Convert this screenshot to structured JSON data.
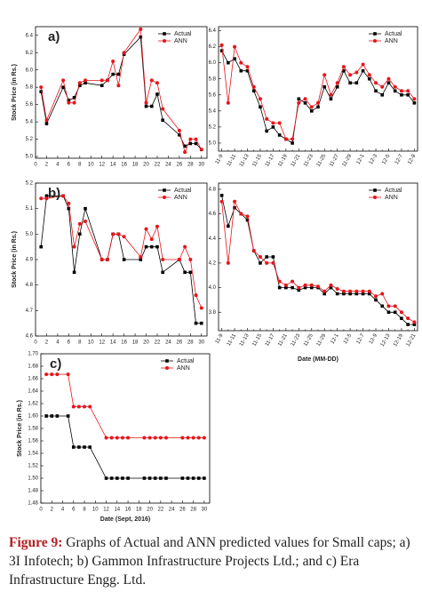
{
  "caption_label": "Figure 9:",
  "caption": "Graphs of Actual and ANN predicted values for Small caps; a) 3I Infotech; b) Gammon Infrastructure Projects Ltd.; and c) Era Infrastructure Engg. Ltd.",
  "chart_data": [
    {
      "type": "line",
      "label": "a)",
      "y_label": "Stock Price (in Rs.)",
      "x": [
        1,
        2,
        5,
        6,
        7,
        8,
        9,
        12,
        13,
        14,
        15,
        16,
        19,
        20,
        21,
        22,
        23,
        26,
        27,
        28,
        29,
        30
      ],
      "xlim": [
        0,
        31
      ],
      "xticks": [
        0,
        2,
        4,
        6,
        8,
        10,
        12,
        14,
        16,
        18,
        20,
        22,
        24,
        26,
        28,
        30
      ],
      "ylim": [
        4.98,
        6.5
      ],
      "yticks": [
        {
          "value": 5,
          "label": "5.0"
        },
        5.2,
        5.4,
        5.6,
        5.8,
        {
          "value": 6,
          "label": "6.0"
        },
        6.2,
        6.4
      ],
      "series": [
        {
          "name": "Actual",
          "color": "#000000",
          "marker": "square",
          "values": [
            5.75,
            5.38,
            5.8,
            5.65,
            5.68,
            5.82,
            5.85,
            5.82,
            5.88,
            5.95,
            5.95,
            6.18,
            6.38,
            5.58,
            5.58,
            5.72,
            5.42,
            5.25,
            5.12,
            5.15,
            5.15,
            5.08
          ]
        },
        {
          "name": "ANN",
          "color": "#e8141b",
          "marker": "circle",
          "values": [
            5.8,
            5.42,
            5.88,
            5.62,
            5.62,
            5.85,
            5.88,
            5.88,
            5.88,
            6.1,
            5.82,
            6.2,
            6.47,
            5.62,
            5.88,
            5.85,
            5.55,
            5.3,
            5.05,
            5.2,
            5.2,
            5.08
          ]
        }
      ]
    },
    {
      "type": "line",
      "categories": [
        "11-9",
        null,
        "11-11",
        null,
        "11-13",
        null,
        "11-15",
        null,
        "11-17",
        null,
        "11-19",
        null,
        "11-21",
        null,
        "11-23",
        null,
        "11-25",
        null,
        "11-27",
        null,
        "11-29",
        null,
        "12-1",
        null,
        "12-3",
        null,
        "12-5",
        null,
        "12-7",
        null,
        "12-9"
      ],
      "ylim": [
        4.9,
        6.45
      ],
      "yticks": [
        {
          "value": 5,
          "label": "5.0"
        },
        5.2,
        5.4,
        5.6,
        5.8,
        {
          "value": 6,
          "label": "6.0"
        },
        6.2,
        6.4
      ],
      "series": [
        {
          "name": "Actual",
          "color": "#000000",
          "marker": "square",
          "values": [
            6.15,
            6.0,
            6.05,
            5.9,
            5.9,
            5.65,
            5.45,
            5.15,
            5.2,
            5.1,
            5.05,
            5.0,
            5.55,
            5.5,
            5.4,
            5.45,
            5.7,
            5.55,
            5.7,
            5.9,
            5.75,
            5.75,
            5.9,
            5.8,
            5.65,
            5.6,
            5.75,
            5.65,
            5.6,
            5.6,
            5.5
          ]
        },
        {
          "name": "ANN",
          "color": "#e8141b",
          "marker": "circle",
          "values": [
            6.22,
            5.5,
            6.2,
            6.0,
            5.95,
            5.7,
            5.55,
            5.3,
            5.25,
            5.25,
            5.05,
            5.05,
            5.5,
            5.55,
            5.45,
            5.5,
            5.85,
            5.6,
            5.75,
            5.95,
            5.85,
            5.88,
            5.98,
            5.85,
            5.75,
            5.7,
            5.8,
            5.7,
            5.65,
            5.65,
            5.55
          ]
        }
      ]
    },
    {
      "type": "line",
      "label": "b)",
      "y_label": "Stock Price (in Rs.)",
      "x": [
        1,
        2,
        5,
        6,
        7,
        8,
        9,
        12,
        13,
        14,
        15,
        16,
        19,
        20,
        21,
        22,
        23,
        26,
        27,
        28,
        29,
        30
      ],
      "xlim": [
        0,
        31
      ],
      "xticks": [
        0,
        2,
        4,
        6,
        8,
        10,
        12,
        14,
        16,
        18,
        20,
        22,
        24,
        26,
        28,
        30
      ],
      "ylim": [
        4.6,
        5.2
      ],
      "yticks": [
        4.6,
        4.7,
        4.8,
        4.9,
        {
          "value": 5,
          "label": "5.0"
        },
        5.1,
        5.2
      ],
      "series": [
        {
          "name": "Actual",
          "color": "#000000",
          "marker": "square",
          "values": [
            4.95,
            5.15,
            5.15,
            5.1,
            4.85,
            5.0,
            5.1,
            4.9,
            4.9,
            5.0,
            5.0,
            4.9,
            4.9,
            4.95,
            4.95,
            4.95,
            4.85,
            4.9,
            4.85,
            4.85,
            4.65,
            4.65
          ]
        },
        {
          "name": "ANN",
          "color": "#e8141b",
          "marker": "circle",
          "values": [
            5.14,
            5.14,
            5.15,
            5.12,
            4.95,
            5.04,
            5.05,
            4.9,
            4.9,
            5.0,
            5.0,
            4.99,
            4.91,
            5.02,
            4.98,
            5.03,
            4.9,
            4.9,
            4.95,
            4.9,
            4.76,
            4.71
          ]
        }
      ]
    },
    {
      "type": "line",
      "x_label": "Date (MM-DD)",
      "categories": [
        "11-9",
        null,
        "11-11",
        null,
        "11-13",
        null,
        "11-15",
        null,
        "11-17",
        null,
        "11-21",
        null,
        "11-23",
        null,
        "11-25",
        null,
        "11-29",
        null,
        "12-1",
        null,
        "12-5",
        null,
        "12-7",
        null,
        "12-9",
        null,
        "12-13",
        null,
        "12-19",
        null,
        "12-21"
      ],
      "ylim": [
        3.65,
        4.85
      ],
      "yticks": [
        3.8,
        {
          "value": 4,
          "label": "4.0"
        },
        4.2,
        4.4,
        4.6,
        4.8
      ],
      "series": [
        {
          "name": "Actual",
          "color": "#000000",
          "marker": "square",
          "values": [
            4.75,
            4.5,
            4.65,
            4.6,
            4.55,
            4.3,
            4.2,
            4.25,
            4.25,
            4.0,
            4.0,
            4.0,
            3.98,
            4.0,
            4.0,
            4.0,
            3.95,
            4.0,
            3.95,
            3.95,
            3.95,
            3.95,
            3.95,
            3.95,
            3.9,
            3.85,
            3.8,
            3.8,
            3.75,
            3.7,
            3.7
          ]
        },
        {
          "name": "ANN",
          "color": "#e8141b",
          "marker": "circle",
          "values": [
            4.7,
            4.2,
            4.7,
            4.6,
            4.58,
            4.3,
            4.25,
            4.2,
            4.2,
            4.05,
            4.02,
            4.05,
            4.0,
            4.02,
            4.02,
            4.01,
            3.97,
            4.02,
            3.99,
            3.97,
            3.97,
            3.97,
            3.97,
            3.97,
            3.93,
            3.95,
            3.85,
            3.85,
            3.8,
            3.75,
            3.72
          ]
        }
      ]
    },
    {
      "type": "line",
      "label": "c)",
      "y_label": "Stock Price (in Rs.)",
      "x_label": "Date (Sept, 2016)",
      "x": [
        1,
        2,
        3,
        5,
        6,
        7,
        8,
        9,
        12,
        13,
        14,
        15,
        16,
        19,
        20,
        21,
        22,
        23,
        26,
        27,
        28,
        29,
        30
      ],
      "xlim": [
        0,
        31
      ],
      "xticks": [
        0,
        2,
        4,
        6,
        8,
        10,
        12,
        14,
        16,
        18,
        20,
        22,
        24,
        26,
        28,
        30
      ],
      "ylim": [
        1.46,
        1.7
      ],
      "yticks": [
        1.46,
        1.48,
        {
          "value": 1.5,
          "label": "1.50"
        },
        1.52,
        1.54,
        1.56,
        1.58,
        {
          "value": 1.6,
          "label": "1.60"
        },
        1.62,
        1.64,
        1.66,
        1.68,
        {
          "value": 1.7,
          "label": "1.70"
        }
      ],
      "series": [
        {
          "name": "Actual",
          "color": "#000000",
          "marker": "square",
          "values": [
            1.6,
            1.6,
            1.6,
            1.6,
            1.55,
            1.55,
            1.55,
            1.55,
            1.5,
            1.5,
            1.5,
            1.5,
            1.5,
            1.5,
            1.5,
            1.5,
            1.5,
            1.5,
            1.5,
            1.5,
            1.5,
            1.5,
            1.5
          ]
        },
        {
          "name": "ANN",
          "color": "#e8141b",
          "marker": "circle",
          "values": [
            1.667,
            1.667,
            1.667,
            1.667,
            1.615,
            1.615,
            1.615,
            1.615,
            1.565,
            1.565,
            1.565,
            1.565,
            1.565,
            1.565,
            1.565,
            1.565,
            1.565,
            1.565,
            1.565,
            1.565,
            1.565,
            1.565,
            1.565
          ]
        }
      ]
    }
  ]
}
